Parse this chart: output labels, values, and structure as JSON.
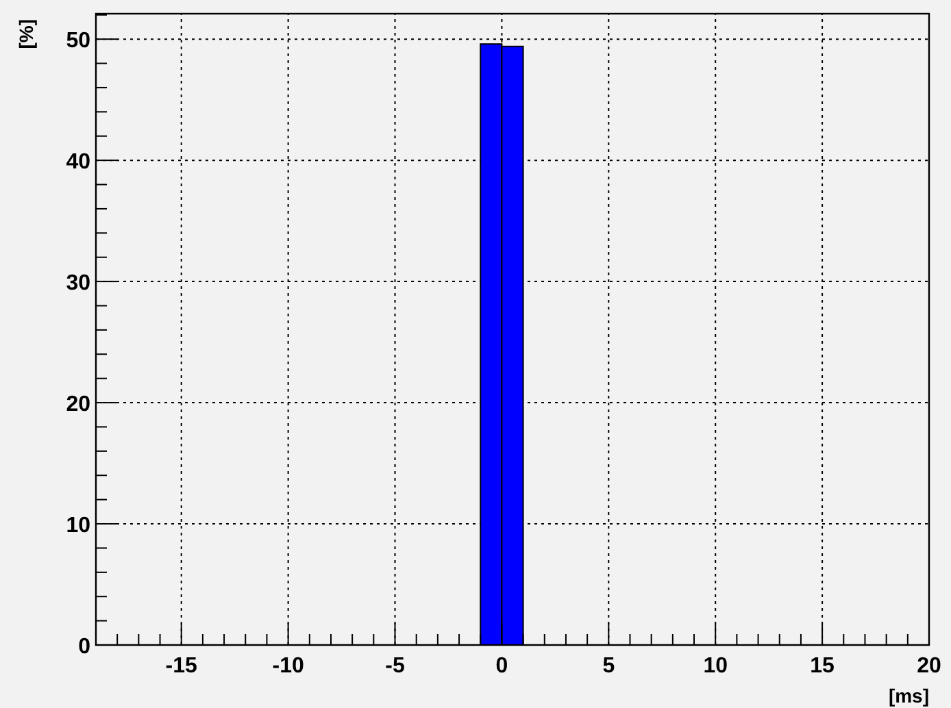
{
  "chart_data": {
    "type": "histogram",
    "xlabel": "[ms]",
    "ylabel": "[%]",
    "bins": [
      -1,
      0,
      1
    ],
    "values": [
      49.6,
      49.4
    ],
    "color": "#0000ff",
    "xlim": [
      -19,
      20
    ],
    "ylim": [
      0,
      52.1
    ],
    "xticks": [
      {
        "value": -19,
        "label": null
      },
      {
        "value": -18,
        "label": null
      },
      {
        "value": -17,
        "label": null
      },
      {
        "value": -16,
        "label": null
      },
      -15,
      {
        "value": -14,
        "label": null
      },
      {
        "value": -13,
        "label": null
      },
      {
        "value": -12,
        "label": null
      },
      {
        "value": -11,
        "label": null
      },
      -10,
      {
        "value": -9,
        "label": null
      },
      {
        "value": -8,
        "label": null
      },
      {
        "value": -7,
        "label": null
      },
      {
        "value": -6,
        "label": null
      },
      -5,
      {
        "value": -4,
        "label": null
      },
      {
        "value": -3,
        "label": null
      },
      {
        "value": -2,
        "label": null
      },
      {
        "value": -1,
        "label": null
      },
      0,
      {
        "value": 1,
        "label": null
      },
      {
        "value": 2,
        "label": null
      },
      {
        "value": 3,
        "label": null
      },
      {
        "value": 4,
        "label": null
      },
      5,
      {
        "value": 6,
        "label": null
      },
      {
        "value": 7,
        "label": null
      },
      {
        "value": 8,
        "label": null
      },
      {
        "value": 9,
        "label": null
      },
      10,
      {
        "value": 11,
        "label": null
      },
      {
        "value": 12,
        "label": null
      },
      {
        "value": 13,
        "label": null
      },
      {
        "value": 14,
        "label": null
      },
      15,
      {
        "value": 16,
        "label": null
      },
      {
        "value": 17,
        "label": null
      },
      {
        "value": 18,
        "label": null
      },
      {
        "value": 19,
        "label": null
      },
      20
    ],
    "yticks": [
      0,
      {
        "value": 2,
        "label": null
      },
      {
        "value": 4,
        "label": null
      },
      {
        "value": 6,
        "label": null
      },
      {
        "value": 8,
        "label": null
      },
      10,
      {
        "value": 12,
        "label": null
      },
      {
        "value": 14,
        "label": null
      },
      {
        "value": 16,
        "label": null
      },
      {
        "value": 18,
        "label": null
      },
      20,
      {
        "value": 22,
        "label": null
      },
      {
        "value": 24,
        "label": null
      },
      {
        "value": 26,
        "label": null
      },
      {
        "value": 28,
        "label": null
      },
      30,
      {
        "value": 32,
        "label": null
      },
      {
        "value": 34,
        "label": null
      },
      {
        "value": 36,
        "label": null
      },
      {
        "value": 38,
        "label": null
      },
      40,
      {
        "value": 42,
        "label": null
      },
      {
        "value": 44,
        "label": null
      },
      {
        "value": 46,
        "label": null
      },
      {
        "value": 48,
        "label": null
      },
      50,
      {
        "value": 52,
        "label": null
      }
    ],
    "grid": true
  }
}
